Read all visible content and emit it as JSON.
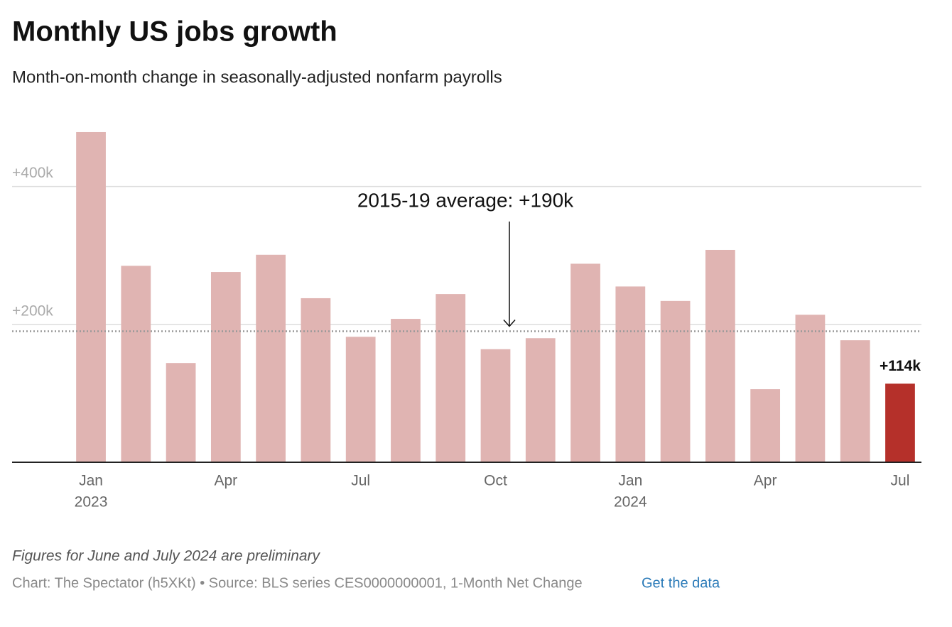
{
  "chart_data": {
    "type": "bar",
    "title": "Monthly US jobs growth",
    "subtitle": "Month-on-month change in seasonally-adjusted nonfarm payrolls",
    "categories": [
      "Jan",
      null,
      null,
      "Apr",
      null,
      null,
      "Jul",
      null,
      null,
      "Oct",
      null,
      null,
      "Jan",
      null,
      null,
      "Apr",
      null,
      null,
      "Jul"
    ],
    "category_years": [
      "2023",
      null,
      null,
      null,
      null,
      null,
      null,
      null,
      null,
      null,
      null,
      null,
      "2024",
      null,
      null,
      null,
      null,
      null,
      null
    ],
    "values": [
      479,
      285,
      144,
      276,
      301,
      238,
      182,
      208,
      244,
      164,
      180,
      288,
      255,
      234,
      308,
      106,
      214,
      177,
      114
    ],
    "value_labels": [
      null,
      null,
      null,
      null,
      null,
      null,
      null,
      null,
      null,
      null,
      null,
      null,
      null,
      null,
      null,
      null,
      null,
      null,
      "+114k"
    ],
    "colors": [
      "#e0b4b2",
      "#e0b4b2",
      "#e0b4b2",
      "#e0b4b2",
      "#e0b4b2",
      "#e0b4b2",
      "#e0b4b2",
      "#e0b4b2",
      "#e0b4b2",
      "#e0b4b2",
      "#e0b4b2",
      "#e0b4b2",
      "#e0b4b2",
      "#e0b4b2",
      "#e0b4b2",
      "#e0b4b2",
      "#e0b4b2",
      "#e0b4b2",
      "#b5302a"
    ],
    "ylim": [
      0,
      480
    ],
    "yticks": [
      {
        "value": 200,
        "label": "+200k"
      },
      {
        "value": 400,
        "label": "+400k"
      }
    ],
    "grid": true,
    "reference_line": {
      "value": 190,
      "label": "2015-19 average: +190k"
    },
    "note": "Figures for June and July 2024 are preliminary",
    "source": "Chart: The Spectator (h5XKt) • Source: BLS series CES0000000001, 1-Month Net Change",
    "link": "Get the data"
  }
}
